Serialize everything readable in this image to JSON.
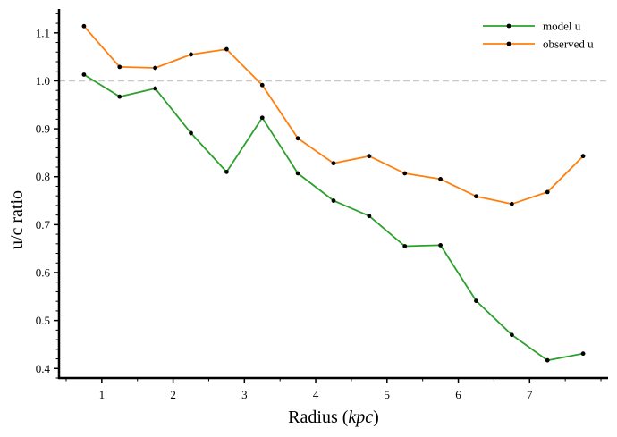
{
  "chart_data": {
    "type": "line",
    "xlabel": "Radius (",
    "xlabel_unit": "kpc",
    "xlabel_close": ")",
    "ylabel": "u/c ratio",
    "xlim": [
      0.4,
      8.1
    ],
    "ylim": [
      0.38,
      1.15
    ],
    "x_ticks": [
      1,
      2,
      3,
      4,
      5,
      6,
      7
    ],
    "x_tick_labels": [
      "1",
      "2",
      "3",
      "4",
      "5",
      "6",
      "7"
    ],
    "y_ticks": [
      0.4,
      0.5,
      0.6,
      0.7,
      0.8,
      0.9,
      1.0,
      1.1
    ],
    "y_tick_labels": [
      "0.4",
      "0.5",
      "0.6",
      "0.7",
      "0.8",
      "0.9",
      "1.0",
      "1.1"
    ],
    "reference_line": {
      "y": 1.0,
      "style": "dashed",
      "color": "#c8c8c8"
    },
    "legend_position": "top-right",
    "x": [
      0.75,
      1.25,
      1.75,
      2.25,
      2.75,
      3.25,
      3.75,
      4.25,
      4.75,
      5.25,
      5.75,
      6.25,
      6.75,
      7.25,
      7.75
    ],
    "series": [
      {
        "name": "model u",
        "color": "#2ca02c",
        "values": [
          1.013,
          0.967,
          0.984,
          0.891,
          0.81,
          0.923,
          0.807,
          0.75,
          0.718,
          0.655,
          0.657,
          0.541,
          0.47,
          0.417,
          0.431
        ]
      },
      {
        "name": "observed u",
        "color": "#ff7f0e",
        "values": [
          1.114,
          1.029,
          1.027,
          1.055,
          1.066,
          0.991,
          0.88,
          0.828,
          0.843,
          0.807,
          0.795,
          0.759,
          0.743,
          0.768,
          0.843
        ]
      }
    ]
  }
}
